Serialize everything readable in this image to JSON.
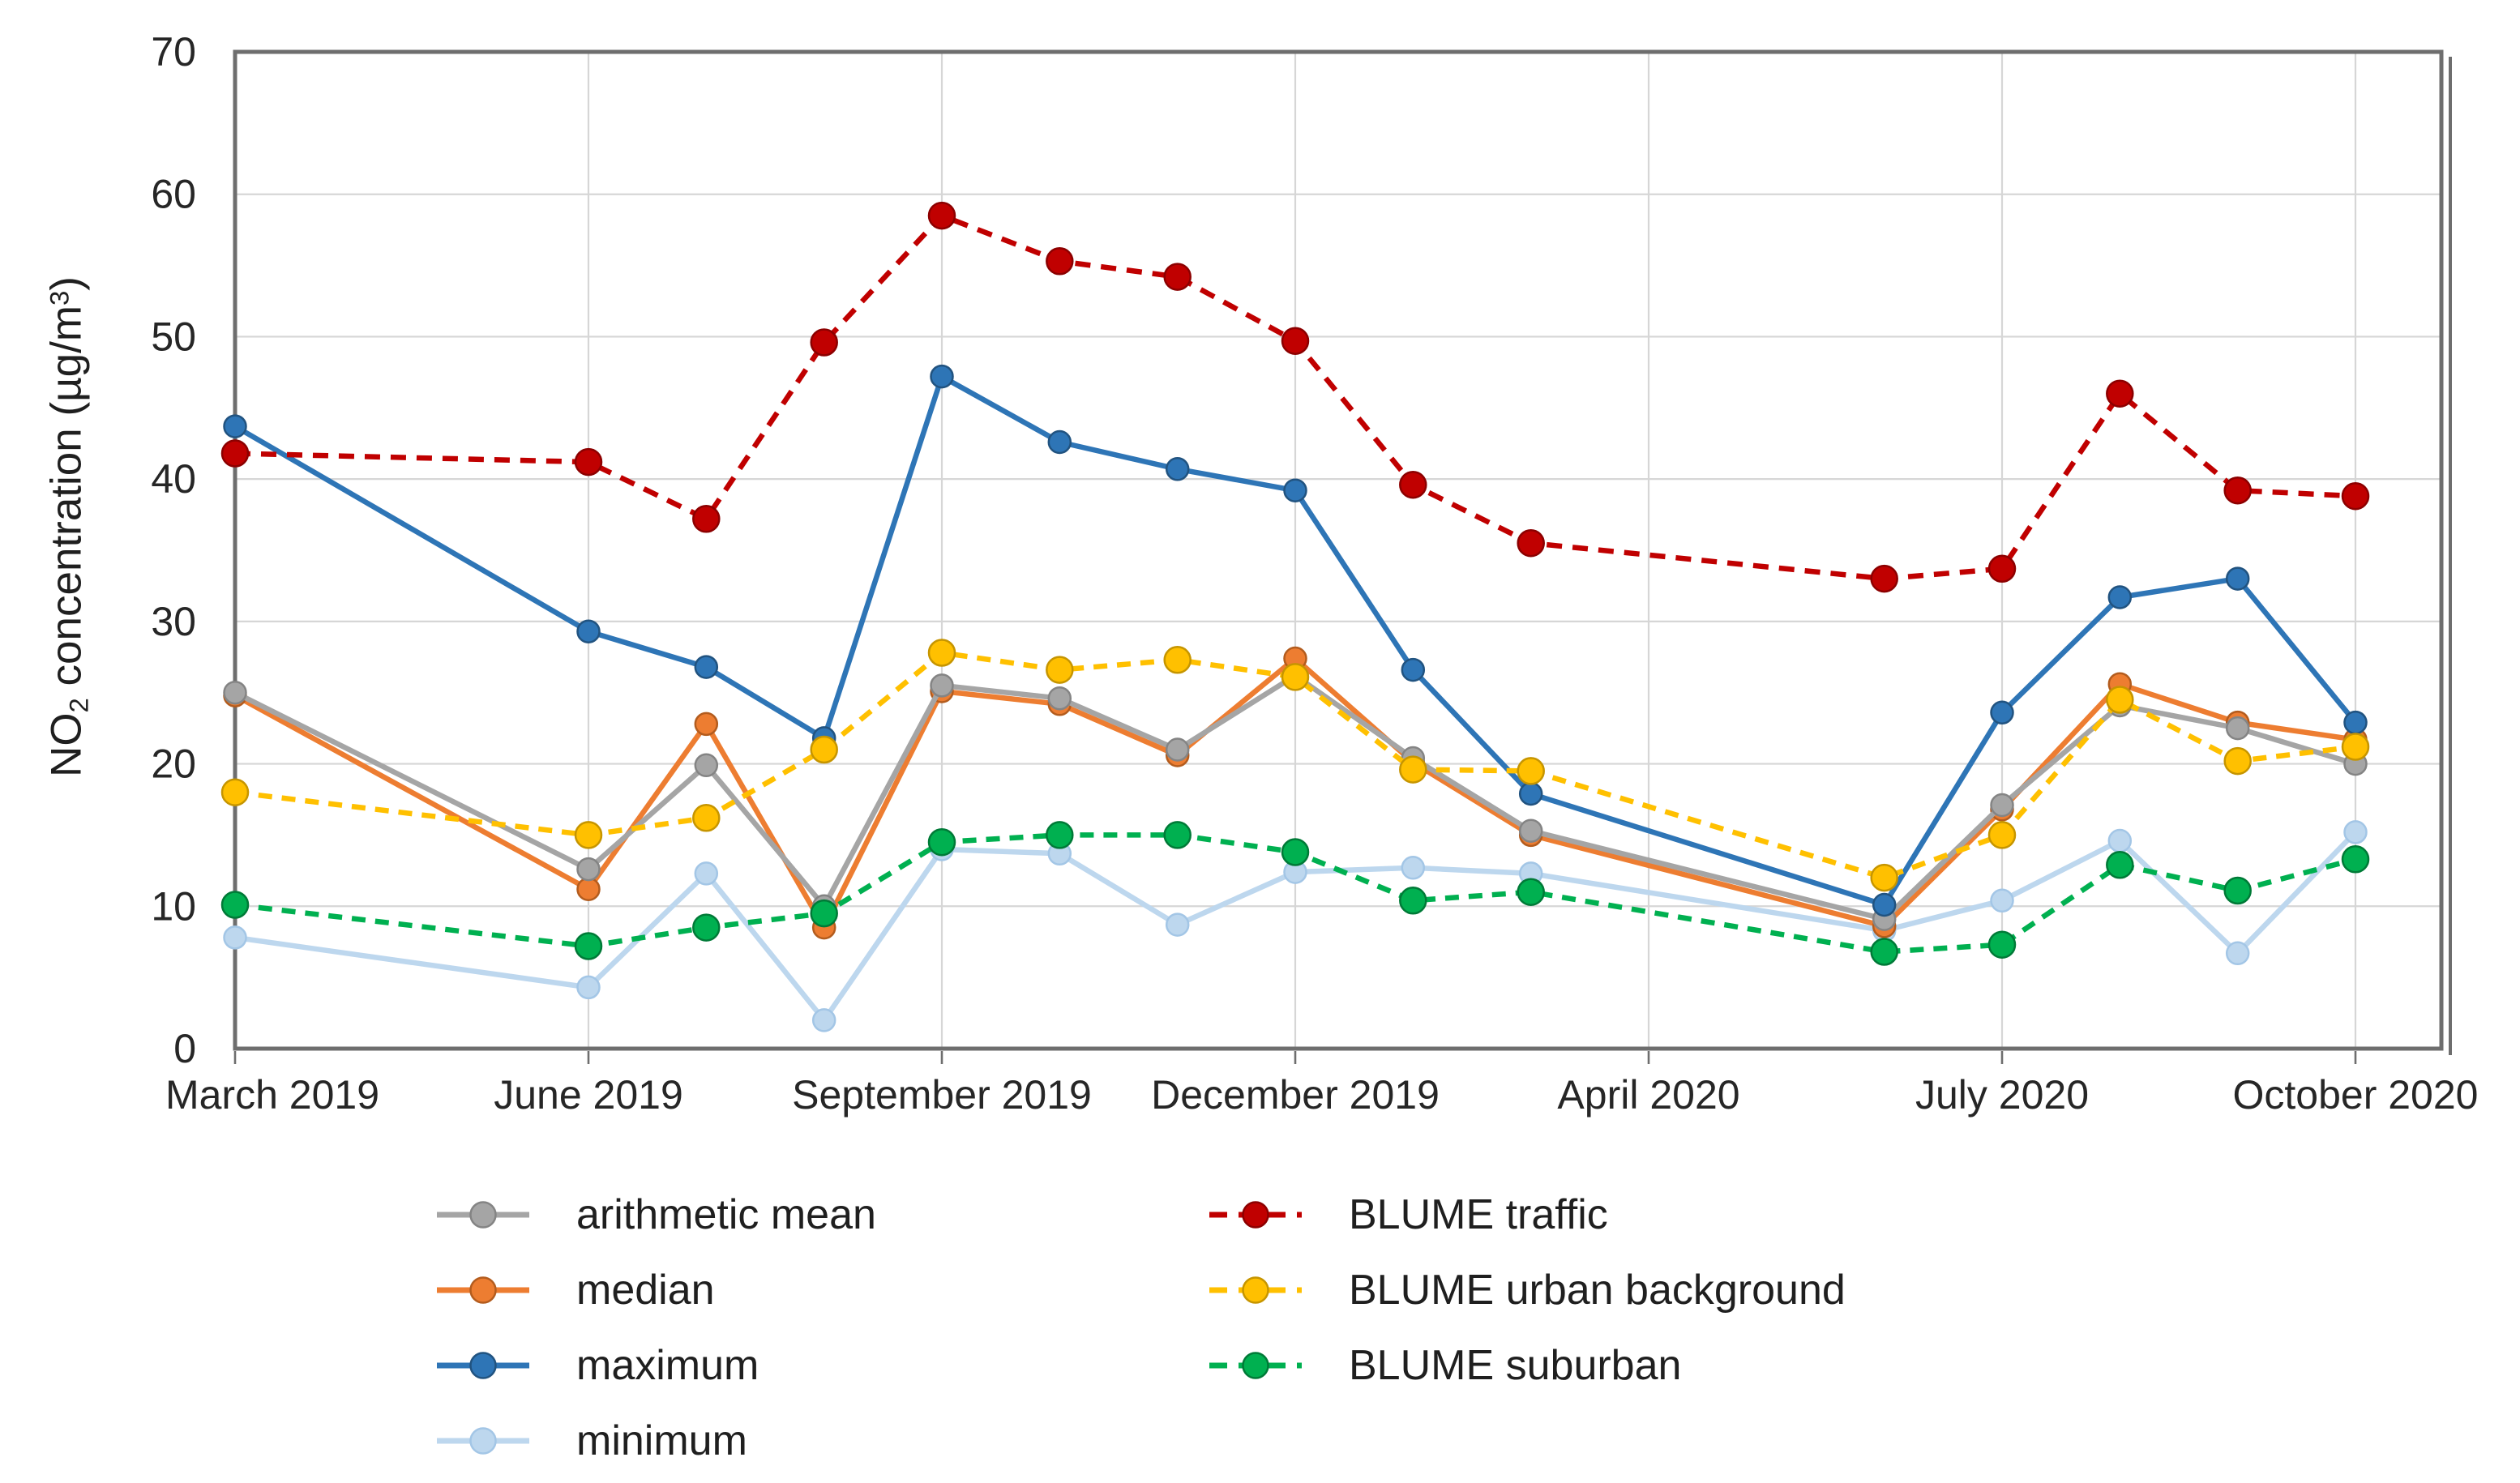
{
  "y_axis_title": {
    "pre": "NO",
    "sub": "2",
    "mid": " concentration (µg/m",
    "sup": "3",
    "post": ")"
  },
  "chart_data": {
    "type": "line",
    "title": "",
    "xlabel": "",
    "ylabel": "NO2 concentration (µg/m³)",
    "ylim": [
      0,
      70
    ],
    "y_tick_step": 10,
    "y_ticks": [
      0,
      10,
      20,
      30,
      40,
      50,
      60,
      70
    ],
    "grid": true,
    "grid_color": "#d6d6d6",
    "frame_color": "#6e6e6e",
    "axis_text_color": "#262626",
    "x_total_slots": 19,
    "x_tick_slots": [
      0,
      3,
      6,
      9,
      12,
      15,
      18
    ],
    "x_tick_labels": [
      "March 2019",
      "June 2019",
      "September 2019",
      "December 2019",
      "April 2020",
      "July 2020",
      "October 2020"
    ],
    "categories": [
      "March 2019",
      "June 2019",
      "July 2019",
      "August 2019",
      "September 2019",
      "October 2019",
      "November 2019",
      "December 2019",
      "February 2020",
      "March 2020",
      "June 2020",
      "July 2020",
      "August 2020",
      "September 2020",
      "October 2020"
    ],
    "category_slots": [
      0,
      3,
      4,
      5,
      6,
      7,
      8,
      9,
      10,
      11,
      14,
      15,
      16,
      17,
      18
    ],
    "missing_months_note": "no data points for April 2019, May 2019, January 2020, April 2020, May 2020; lines connect across gaps",
    "series": [
      {
        "name": "arithmetic mean",
        "color": "#a5a5a5",
        "edge": "#848484",
        "style": "solid",
        "dash": null,
        "marker_r": 13.5,
        "values": [
          25.0,
          12.6,
          19.9,
          10.0,
          25.5,
          24.6,
          21.0,
          26.2,
          20.4,
          15.3,
          9.1,
          17.1,
          24.1,
          22.5,
          20.0
        ]
      },
      {
        "name": "median",
        "color": "#ed7d31",
        "edge": "#b35c1e",
        "style": "solid",
        "dash": null,
        "marker_r": 13.5,
        "values": [
          24.8,
          11.2,
          22.8,
          8.5,
          25.1,
          24.2,
          20.6,
          27.4,
          20.1,
          15.0,
          8.6,
          16.8,
          25.6,
          22.9,
          21.7
        ]
      },
      {
        "name": "maximum",
        "color": "#2e75b6",
        "edge": "#215380",
        "style": "solid",
        "dash": null,
        "marker_r": 13.5,
        "values": [
          43.7,
          29.3,
          26.8,
          21.8,
          47.2,
          42.6,
          40.7,
          39.2,
          26.6,
          17.9,
          10.1,
          23.6,
          31.7,
          33.0,
          22.9
        ]
      },
      {
        "name": "minimum",
        "color": "#bdd7ee",
        "edge": "#a3c6e6",
        "style": "solid",
        "dash": null,
        "marker_r": 13.5,
        "values": [
          7.8,
          4.3,
          12.3,
          2.0,
          14.0,
          13.7,
          8.7,
          12.4,
          12.7,
          12.3,
          8.3,
          10.4,
          14.6,
          6.7,
          15.2
        ]
      },
      {
        "name": "BLUME traffic",
        "color": "#c00000",
        "edge": "#8c0000",
        "style": "dashed",
        "dash": "19 13",
        "marker_r": 16,
        "values": [
          41.8,
          41.2,
          37.2,
          49.6,
          58.5,
          55.3,
          54.2,
          49.7,
          39.6,
          35.5,
          33.0,
          33.7,
          46.0,
          39.2,
          38.8
        ]
      },
      {
        "name": "BLUME urban background",
        "color": "#ffc000",
        "edge": "#c69500",
        "style": "dashed",
        "dash": "17 12",
        "marker_r": 16,
        "values": [
          18.0,
          15.0,
          16.2,
          21.0,
          27.8,
          26.6,
          27.3,
          26.1,
          19.6,
          19.5,
          12.0,
          15.0,
          24.5,
          20.2,
          21.2
        ]
      },
      {
        "name": "BLUME suburban",
        "color": "#00b050",
        "edge": "#007a37",
        "style": "dashed",
        "dash": "17 12",
        "marker_r": 16,
        "values": [
          10.1,
          7.2,
          8.5,
          9.5,
          14.5,
          15.0,
          15.0,
          13.8,
          10.4,
          11.0,
          6.8,
          7.3,
          12.9,
          11.1,
          13.3
        ]
      }
    ],
    "draw_order": [
      3,
      1,
      0,
      2,
      4,
      5,
      6
    ],
    "legend_position": "bottom",
    "legend_columns": [
      [
        0,
        1,
        2,
        3
      ],
      [
        4,
        5,
        6
      ]
    ]
  }
}
